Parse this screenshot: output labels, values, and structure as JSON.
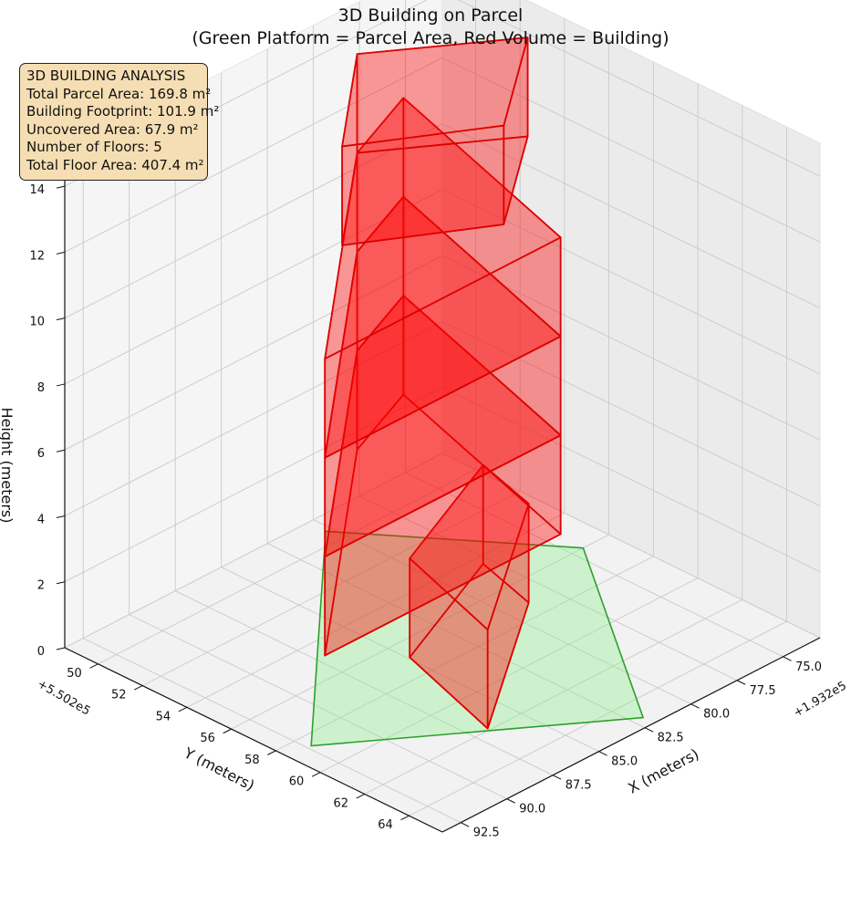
{
  "figure": {
    "title_line1": "3D Building on Parcel",
    "title_line2": "(Green Platform = Parcel Area, Red Volume = Building)"
  },
  "info_box": {
    "heading": "3D BUILDING ANALYSIS",
    "lines": [
      "Total Parcel Area: 169.8 m²",
      "Building Footprint: 101.9 m²",
      "Uncovered Area: 67.9 m²",
      "Number of Floors: 5",
      "Total Floor Area: 407.4 m²"
    ]
  },
  "colors": {
    "building_face": "#ff0000",
    "building_edge": "#dd0000",
    "parcel_face": "#90ee90",
    "parcel_edge": "#2ca02c",
    "info_box_bg": "#f5deb3"
  },
  "chart_data": {
    "type": "3d-volume",
    "xlabel": "X (meters)",
    "ylabel": "Y (meters)",
    "zlabel": "Height (meters)",
    "x_offset_label": "+1.932e5",
    "y_offset_label": "+5.502e5",
    "x_ticks": [
      "75.0",
      "77.5",
      "80.0",
      "82.5",
      "85.0",
      "87.5",
      "90.0",
      "92.5"
    ],
    "y_ticks": [
      "50",
      "52",
      "54",
      "56",
      "58",
      "60",
      "62",
      "64"
    ],
    "z_ticks": [
      "0",
      "2",
      "4",
      "6",
      "8",
      "10",
      "12",
      "14"
    ],
    "xlim": [
      73.0,
      93.5
    ],
    "ylim": [
      48.5,
      65.5
    ],
    "zlim": [
      0,
      15
    ],
    "grid": true,
    "parcel": {
      "corners": [
        [
          80.3,
          49.3
        ],
        [
          92.3,
          58.6
        ],
        [
          82.0,
          65.0
        ],
        [
          74.4,
          56.0
        ]
      ]
    },
    "floors": [
      {
        "floor": 1,
        "z": [
          0,
          3
        ],
        "xy": [
          [
            84.9,
            56.9
          ],
          [
            86.7,
            61.9
          ],
          [
            78.8,
            57.2
          ],
          [
            77.9,
            54.4
          ]
        ]
      },
      {
        "floor": 2,
        "z": [
          3,
          6
        ],
        "xy": [
          [
            80.4,
            50.8
          ],
          [
            92.4,
            59.3
          ],
          [
            79.6,
            59.3
          ],
          [
            76.2,
            49.4
          ]
        ]
      },
      {
        "floor": 3,
        "z": [
          6,
          9
        ],
        "xy": [
          [
            80.4,
            50.8
          ],
          [
            92.4,
            59.3
          ],
          [
            79.6,
            59.3
          ],
          [
            76.2,
            49.4
          ]
        ]
      },
      {
        "floor": 4,
        "z": [
          9,
          12
        ],
        "xy": [
          [
            80.4,
            50.8
          ],
          [
            92.4,
            59.3
          ],
          [
            79.6,
            59.3
          ],
          [
            76.2,
            49.4
          ]
        ]
      },
      {
        "floor": 5,
        "z": [
          12,
          15
        ],
        "xy": [
          [
            80.4,
            50.8
          ],
          [
            85.8,
            54.6
          ],
          [
            80.4,
            57.4
          ],
          [
            75.0,
            54.0
          ]
        ]
      }
    ]
  }
}
